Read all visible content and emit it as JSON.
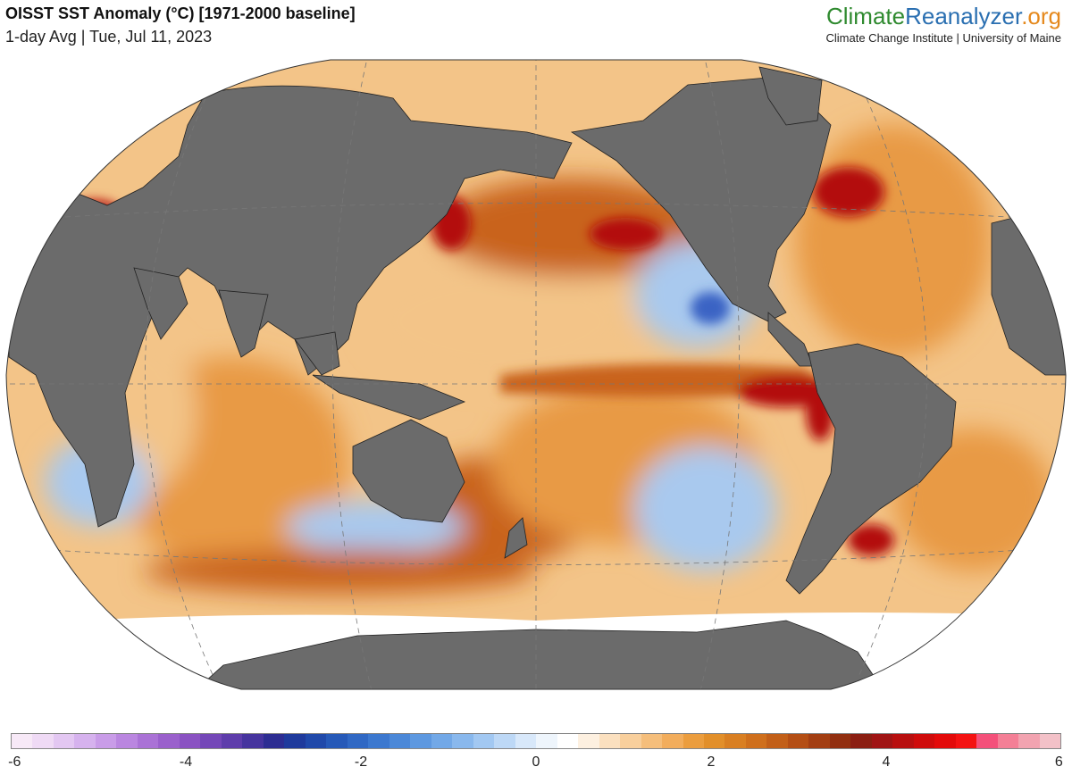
{
  "header": {
    "title": "OISST SST Anomaly (°C) [1971-2000 baseline]",
    "subtitle": "1-day Avg | Tue, Jul 11, 2023"
  },
  "brand": {
    "name_part1": "Climate",
    "name_part2": "Reanalyzer",
    "name_part3": ".org",
    "tagline": "Climate Change Institute | University of Maine"
  },
  "colorbar": {
    "min": -6,
    "max": 6,
    "ticks": [
      "-6",
      "-4",
      "-2",
      "0",
      "2",
      "4",
      "6"
    ],
    "colors": [
      "#f7e9f7",
      "#efdaf5",
      "#e3c7f2",
      "#d6b2ee",
      "#c99ce8",
      "#ba86e0",
      "#aa72d6",
      "#9a60cc",
      "#8a52c2",
      "#7447b8",
      "#5e3dab",
      "#46349e",
      "#2d2d92",
      "#1f3a9c",
      "#2049aa",
      "#2659b8",
      "#3068c4",
      "#3c78cf",
      "#4b88d8",
      "#5d98e0",
      "#72a8e7",
      "#89b8ed",
      "#a2c8f2",
      "#bdd8f6",
      "#d8e8fa",
      "#eef5fc",
      "#ffffff",
      "#fdf0e0",
      "#fbe0bf",
      "#f8cf9c",
      "#f5be7b",
      "#f2ad5c",
      "#eb9d3e",
      "#e28f2a",
      "#d97f22",
      "#cf6f1c",
      "#c25f18",
      "#b44e14",
      "#a33e12",
      "#922f10",
      "#8b1e12",
      "#a01414",
      "#b80f0f",
      "#cf0b0b",
      "#e30a0a",
      "#f41212",
      "#f4507a",
      "#f47f96",
      "#f2a3b0",
      "#f3c1c8"
    ]
  },
  "map": {
    "projection": "Winkel Tripel (Pacific-centered)",
    "land_color": "#6b6b6b",
    "anomaly_colors": {
      "warm_extreme": "#b30f0f",
      "warm_strong": "#c9641b",
      "warm": "#e89a45",
      "warm_light": "#f3c488",
      "neutral": "#ffffff",
      "cool": "#a9c9ee",
      "cool_strong": "#3b64c4"
    },
    "gridlines": "dashed"
  }
}
